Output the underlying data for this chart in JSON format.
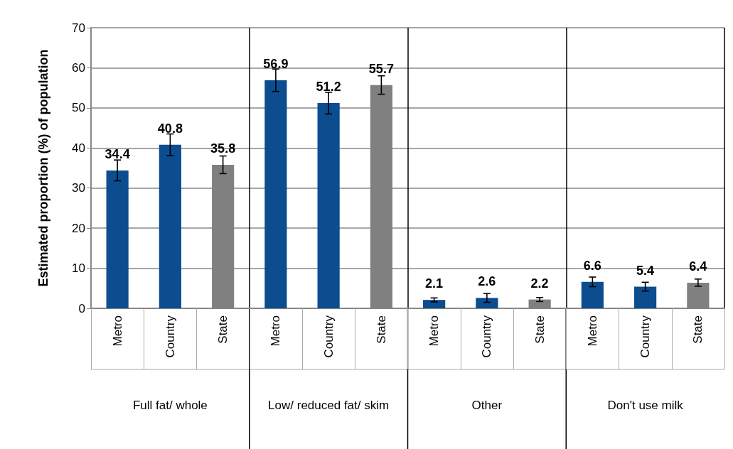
{
  "chart_data": {
    "type": "bar",
    "ylabel": "Estimated proportion (%) of population",
    "categories": [
      "Metro",
      "Country",
      "State",
      "Metro",
      "Country",
      "State",
      "Metro",
      "Country",
      "State",
      "Metro",
      "Country",
      "State"
    ],
    "values": [
      34.4,
      40.8,
      35.8,
      56.9,
      51.2,
      55.7,
      2.1,
      2.6,
      2.2,
      6.6,
      5.4,
      6.4
    ],
    "colors": [
      "#0b4d8f",
      "#0b4d8f",
      "#808080",
      "#0b4d8f",
      "#0b4d8f",
      "#808080",
      "#0b4d8f",
      "#0b4d8f",
      "#808080",
      "#0b4d8f",
      "#0b4d8f",
      "#808080"
    ],
    "errors": [
      2.6,
      2.7,
      2.2,
      2.8,
      2.7,
      2.3,
      0.5,
      1.1,
      0.5,
      1.2,
      1.1,
      0.9
    ],
    "data_labels": true,
    "ylim": [
      0,
      70
    ],
    "yticks": [
      0,
      10,
      20,
      30,
      40,
      50,
      60,
      70
    ],
    "grid": "y",
    "annotations": [
      "Full fat/ whole",
      "Low/ reduced fat/ skim",
      "Other",
      "Don't use milk"
    ]
  }
}
